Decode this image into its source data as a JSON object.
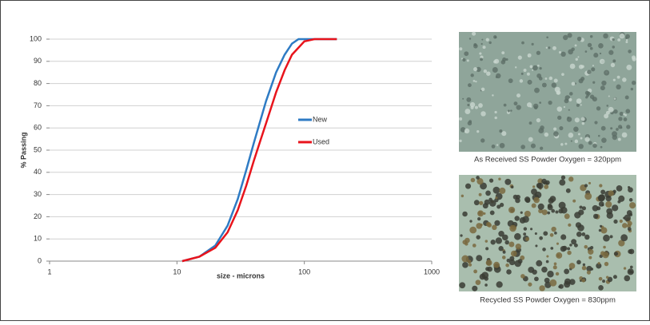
{
  "chart_data": {
    "type": "line",
    "xlabel": "size - microns",
    "ylabel": "% Passing",
    "xscale": "log",
    "xlim": [
      1,
      1000
    ],
    "xticks": [
      1,
      10,
      100,
      1000
    ],
    "ylim": [
      0,
      100
    ],
    "yticks": [
      0,
      10,
      20,
      30,
      40,
      50,
      60,
      70,
      80,
      90,
      100
    ],
    "grid": true,
    "legend": "right",
    "series": [
      {
        "name": "New",
        "color": "#2e7bc4",
        "x": [
          11,
          15,
          20,
          25,
          30,
          35,
          40,
          50,
          60,
          70,
          80,
          90,
          180
        ],
        "values": [
          0,
          2,
          7,
          16,
          28,
          41,
          53,
          72,
          85,
          93,
          98,
          100,
          100
        ]
      },
      {
        "name": "Used",
        "color": "#e8141c",
        "x": [
          11,
          15,
          20,
          25,
          30,
          35,
          40,
          45,
          50,
          60,
          70,
          80,
          100,
          120,
          180
        ],
        "values": [
          0,
          2,
          6,
          13,
          23,
          34,
          45,
          54,
          62,
          76,
          86,
          93,
          99,
          100,
          100
        ]
      }
    ]
  },
  "figures": [
    {
      "caption": "As Received SS Powder Oxygen = 320ppm"
    },
    {
      "caption": "Recycled SS Powder Oxygen = 830ppm"
    }
  ]
}
